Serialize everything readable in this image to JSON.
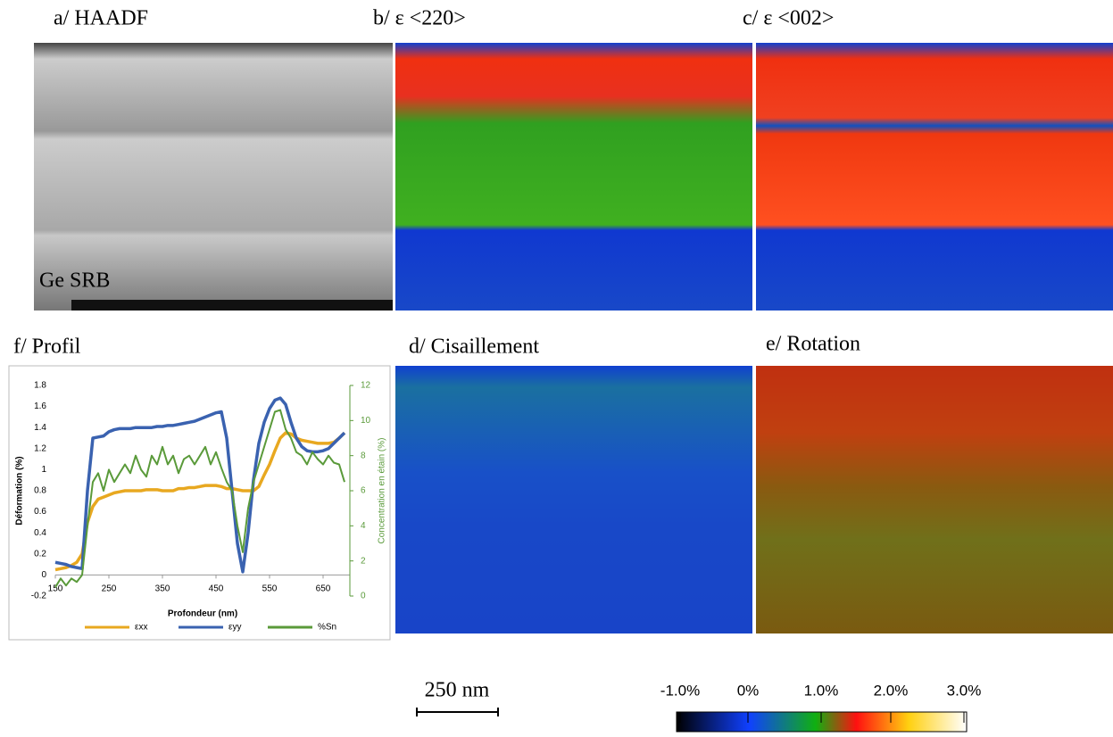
{
  "panels": {
    "a": "a/ HAADF",
    "a_note": "Ge SRB",
    "b": "b/ ε <220>",
    "c": "c/ ε <002>",
    "d": "d/ Cisaillement",
    "e": "e/ Rotation",
    "f": "f/ Profil"
  },
  "scale_bar": "250 nm",
  "colorbar": [
    "-1.0%",
    "0%",
    "1.0%",
    "2.0%",
    "3.0%"
  ],
  "chart_data": {
    "type": "line",
    "x_label": "Profondeur (nm)",
    "y_label": "Déformation (%)",
    "y2_label": "Concentration en étain (%)",
    "x": [
      150,
      160,
      170,
      180,
      190,
      200,
      210,
      220,
      230,
      240,
      250,
      260,
      270,
      280,
      290,
      300,
      310,
      320,
      330,
      340,
      350,
      360,
      370,
      380,
      390,
      400,
      410,
      420,
      430,
      440,
      450,
      460,
      470,
      480,
      490,
      500,
      510,
      520,
      530,
      540,
      550,
      560,
      570,
      580,
      590,
      600,
      610,
      620,
      630,
      640,
      650,
      660,
      670,
      680,
      690
    ],
    "series": [
      {
        "name": "εxx",
        "color": "#e8a820",
        "values": [
          0.05,
          0.06,
          0.07,
          0.09,
          0.12,
          0.2,
          0.5,
          0.65,
          0.72,
          0.74,
          0.76,
          0.78,
          0.79,
          0.8,
          0.8,
          0.8,
          0.8,
          0.81,
          0.81,
          0.81,
          0.8,
          0.8,
          0.8,
          0.82,
          0.82,
          0.83,
          0.83,
          0.84,
          0.85,
          0.85,
          0.85,
          0.84,
          0.82,
          0.82,
          0.81,
          0.8,
          0.8,
          0.8,
          0.84,
          0.95,
          1.05,
          1.18,
          1.3,
          1.35,
          1.34,
          1.3,
          1.28,
          1.27,
          1.26,
          1.25,
          1.25,
          1.25,
          1.26,
          1.3,
          1.35
        ]
      },
      {
        "name": "εyy",
        "color": "#3a62b0",
        "values": [
          0.12,
          0.11,
          0.1,
          0.08,
          0.07,
          0.06,
          0.8,
          1.3,
          1.31,
          1.32,
          1.36,
          1.38,
          1.39,
          1.39,
          1.39,
          1.4,
          1.4,
          1.4,
          1.4,
          1.41,
          1.41,
          1.42,
          1.42,
          1.43,
          1.44,
          1.45,
          1.46,
          1.48,
          1.5,
          1.52,
          1.54,
          1.55,
          1.3,
          0.8,
          0.3,
          0.03,
          0.4,
          0.9,
          1.25,
          1.45,
          1.58,
          1.66,
          1.68,
          1.62,
          1.45,
          1.3,
          1.22,
          1.18,
          1.17,
          1.17,
          1.18,
          1.2,
          1.25,
          1.3,
          1.35
        ]
      },
      {
        "name": "%Sn",
        "color": "#5a9a3a",
        "axis": "y2",
        "values": [
          0.5,
          1.0,
          0.6,
          1.0,
          0.8,
          1.2,
          4,
          6.5,
          7,
          6,
          7.2,
          6.5,
          7,
          7.5,
          7,
          8,
          7.2,
          6.8,
          8,
          7.5,
          8.5,
          7.5,
          8,
          7,
          7.8,
          8,
          7.5,
          8,
          8.5,
          7.5,
          8.2,
          7.3,
          6.5,
          6,
          4,
          2.5,
          5,
          6.5,
          7.5,
          8.5,
          9.5,
          10.5,
          10.6,
          9.5,
          9,
          8.2,
          8,
          7.5,
          8.2,
          7.8,
          7.5,
          8,
          7.6,
          7.5,
          6.5
        ]
      }
    ],
    "xlim": [
      150,
      700
    ],
    "xticks": [
      150,
      250,
      350,
      450,
      550,
      650
    ],
    "ylim": [
      -0.2,
      1.8
    ],
    "yticks": [
      -0.2,
      0,
      0.2,
      0.4,
      0.6,
      0.8,
      1,
      1.2,
      1.4,
      1.6,
      1.8
    ],
    "y2lim": [
      0,
      12
    ],
    "y2ticks": [
      0,
      2,
      4,
      6,
      8,
      10,
      12
    ]
  }
}
